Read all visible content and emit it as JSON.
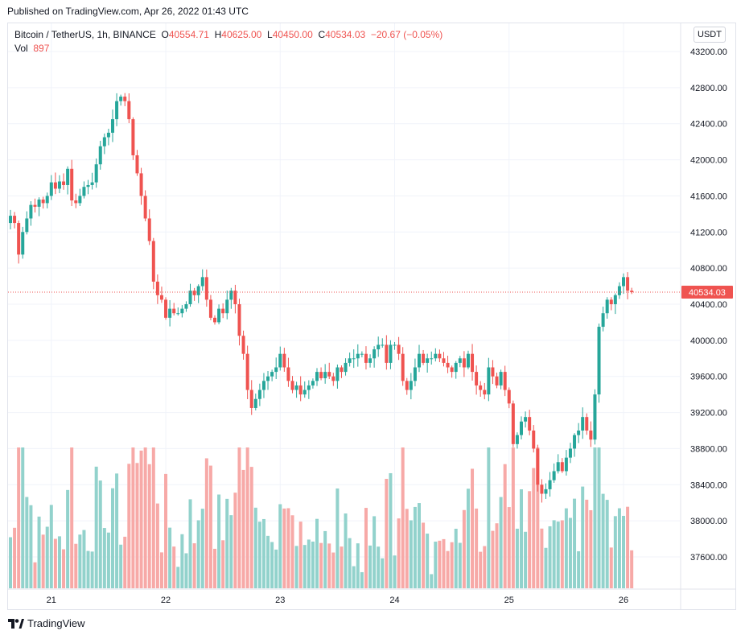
{
  "published": "Published on TradingView.com, Apr 26, 2022 01:43 UTC",
  "legend": {
    "symbol": "Bitcoin / TetherUS, 1h, BINANCE",
    "o_label": "O",
    "o": "40554.71",
    "h_label": "H",
    "h": "40625.00",
    "l_label": "L",
    "l": "40450.00",
    "c_label": "C",
    "c": "40534.03",
    "change": "−20.67 (−0.05%)",
    "vol_label": "Vol",
    "vol": "897"
  },
  "unit": "USDT",
  "last_price_label": "40534.03",
  "footer": "TradingView",
  "colors": {
    "up": "#26a69a",
    "down": "#ef5350",
    "up_vol": "#92d2cc",
    "down_vol": "#f7a9a7",
    "grid": "#f0f3fa"
  },
  "chart_data": {
    "type": "candlestick",
    "symbol": "Bitcoin / TetherUS",
    "interval": "1h",
    "exchange": "BINANCE",
    "y_axis_ticks": [
      "37600.00",
      "38000.00",
      "38400.00",
      "38800.00",
      "39200.00",
      "39600.00",
      "40000.00",
      "40400.00",
      "40800.00",
      "41200.00",
      "41600.00",
      "42000.00",
      "42400.00",
      "42800.00",
      "43200.00"
    ],
    "x_axis_ticks": [
      {
        "label": "21",
        "bar": 10
      },
      {
        "label": "22",
        "bar": 38
      },
      {
        "label": "23",
        "bar": 66
      },
      {
        "label": "24",
        "bar": 94
      },
      {
        "label": "25",
        "bar": 122
      },
      {
        "label": "26",
        "bar": 150
      }
    ],
    "ylim": [
      37400,
      43260
    ],
    "last_price": 40534.03,
    "bar_count": 153,
    "closes": [
      41380,
      41300,
      40950,
      41200,
      41350,
      41500,
      41480,
      41560,
      41520,
      41600,
      41750,
      41680,
      41760,
      41720,
      41900,
      41550,
      41520,
      41600,
      41700,
      41720,
      41750,
      41950,
      42150,
      42250,
      42300,
      42450,
      42650,
      42700,
      42650,
      42450,
      42050,
      41850,
      41600,
      41350,
      41100,
      40650,
      40500,
      40450,
      40250,
      40350,
      40300,
      40300,
      40350,
      40400,
      40550,
      40500,
      40600,
      40700,
      40450,
      40250,
      40200,
      40350,
      40300,
      40450,
      40550,
      40400,
      40050,
      39850,
      39450,
      39250,
      39350,
      39450,
      39550,
      39600,
      39650,
      39700,
      39850,
      39700,
      39550,
      39450,
      39500,
      39400,
      39450,
      39500,
      39550,
      39650,
      39580,
      39650,
      39600,
      39550,
      39700,
      39650,
      39750,
      39800,
      39800,
      39850,
      39850,
      39750,
      39800,
      39900,
      39950,
      39950,
      39750,
      39950,
      39950,
      39850,
      39550,
      39450,
      39550,
      39700,
      39850,
      39750,
      39800,
      39800,
      39850,
      39800,
      39750,
      39700,
      39650,
      39750,
      39800,
      39700,
      39850,
      39650,
      39500,
      39450,
      39400,
      39700,
      39600,
      39500,
      39650,
      39450,
      39300,
      38850,
      38950,
      39100,
      39150,
      39000,
      38800,
      38400,
      38300,
      38350,
      38450,
      38550,
      38650,
      38550,
      38700,
      38800,
      38950,
      39000,
      39150,
      39000,
      38900,
      39400,
      40150,
      40300,
      40450,
      40400,
      40500,
      40600,
      40700,
      40550,
      40534
    ]
  }
}
